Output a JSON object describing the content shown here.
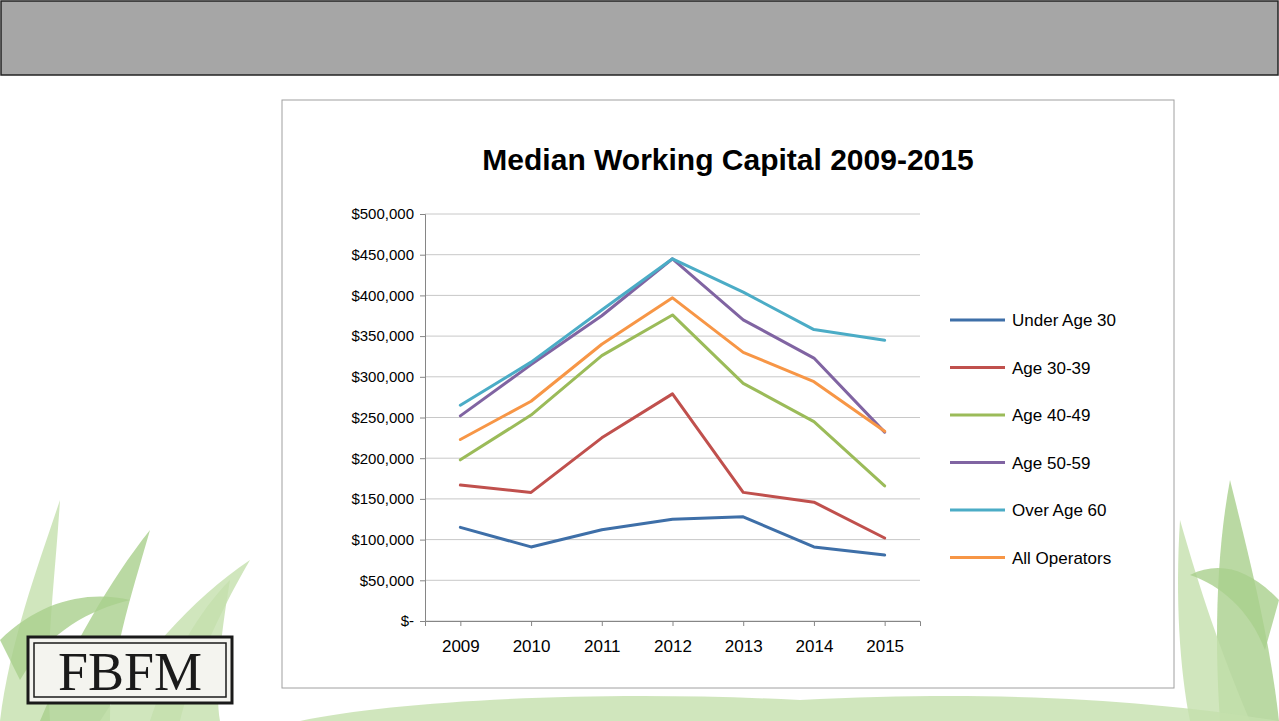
{
  "chart_data": {
    "type": "line",
    "title": "Median Working Capital 2009-2015",
    "categories": [
      "2009",
      "2010",
      "2011",
      "2012",
      "2013",
      "2014",
      "2015"
    ],
    "series": [
      {
        "name": "Under Age 30",
        "color": "#3e6fa8",
        "values": [
          115000,
          91000,
          112000,
          125000,
          128000,
          91000,
          81000
        ]
      },
      {
        "name": "Age 30-39",
        "color": "#c0504d",
        "values": [
          167000,
          158000,
          225000,
          279000,
          158000,
          146000,
          102000
        ]
      },
      {
        "name": "Age 40-49",
        "color": "#9bbb59",
        "values": [
          198000,
          253000,
          326000,
          376000,
          292000,
          245000,
          166000
        ]
      },
      {
        "name": "Age 50-59",
        "color": "#8064a2",
        "values": [
          252000,
          315000,
          375000,
          445000,
          370000,
          323000,
          232000
        ]
      },
      {
        "name": "Over Age 60",
        "color": "#4bacc6",
        "values": [
          265000,
          318000,
          382000,
          445000,
          404000,
          358000,
          345000
        ]
      },
      {
        "name": "All Operators",
        "color": "#f79646",
        "values": [
          223000,
          270000,
          340000,
          397000,
          330000,
          294000,
          233000
        ]
      }
    ],
    "ylim": [
      0,
      500000
    ],
    "yticks": [
      {
        "value": 0,
        "label": "$-"
      },
      {
        "value": 50000,
        "label": "$50,000"
      },
      {
        "value": 100000,
        "label": "$100,000"
      },
      {
        "value": 150000,
        "label": "$150,000"
      },
      {
        "value": 200000,
        "label": "$200,000"
      },
      {
        "value": 250000,
        "label": "$250,000"
      },
      {
        "value": 300000,
        "label": "$300,000"
      },
      {
        "value": 350000,
        "label": "$350,000"
      },
      {
        "value": 400000,
        "label": "$400,000"
      },
      {
        "value": 450000,
        "label": "$450,000"
      },
      {
        "value": 500000,
        "label": "$500,000"
      }
    ],
    "grid": true,
    "legend": "right"
  },
  "logo": "FBFM"
}
